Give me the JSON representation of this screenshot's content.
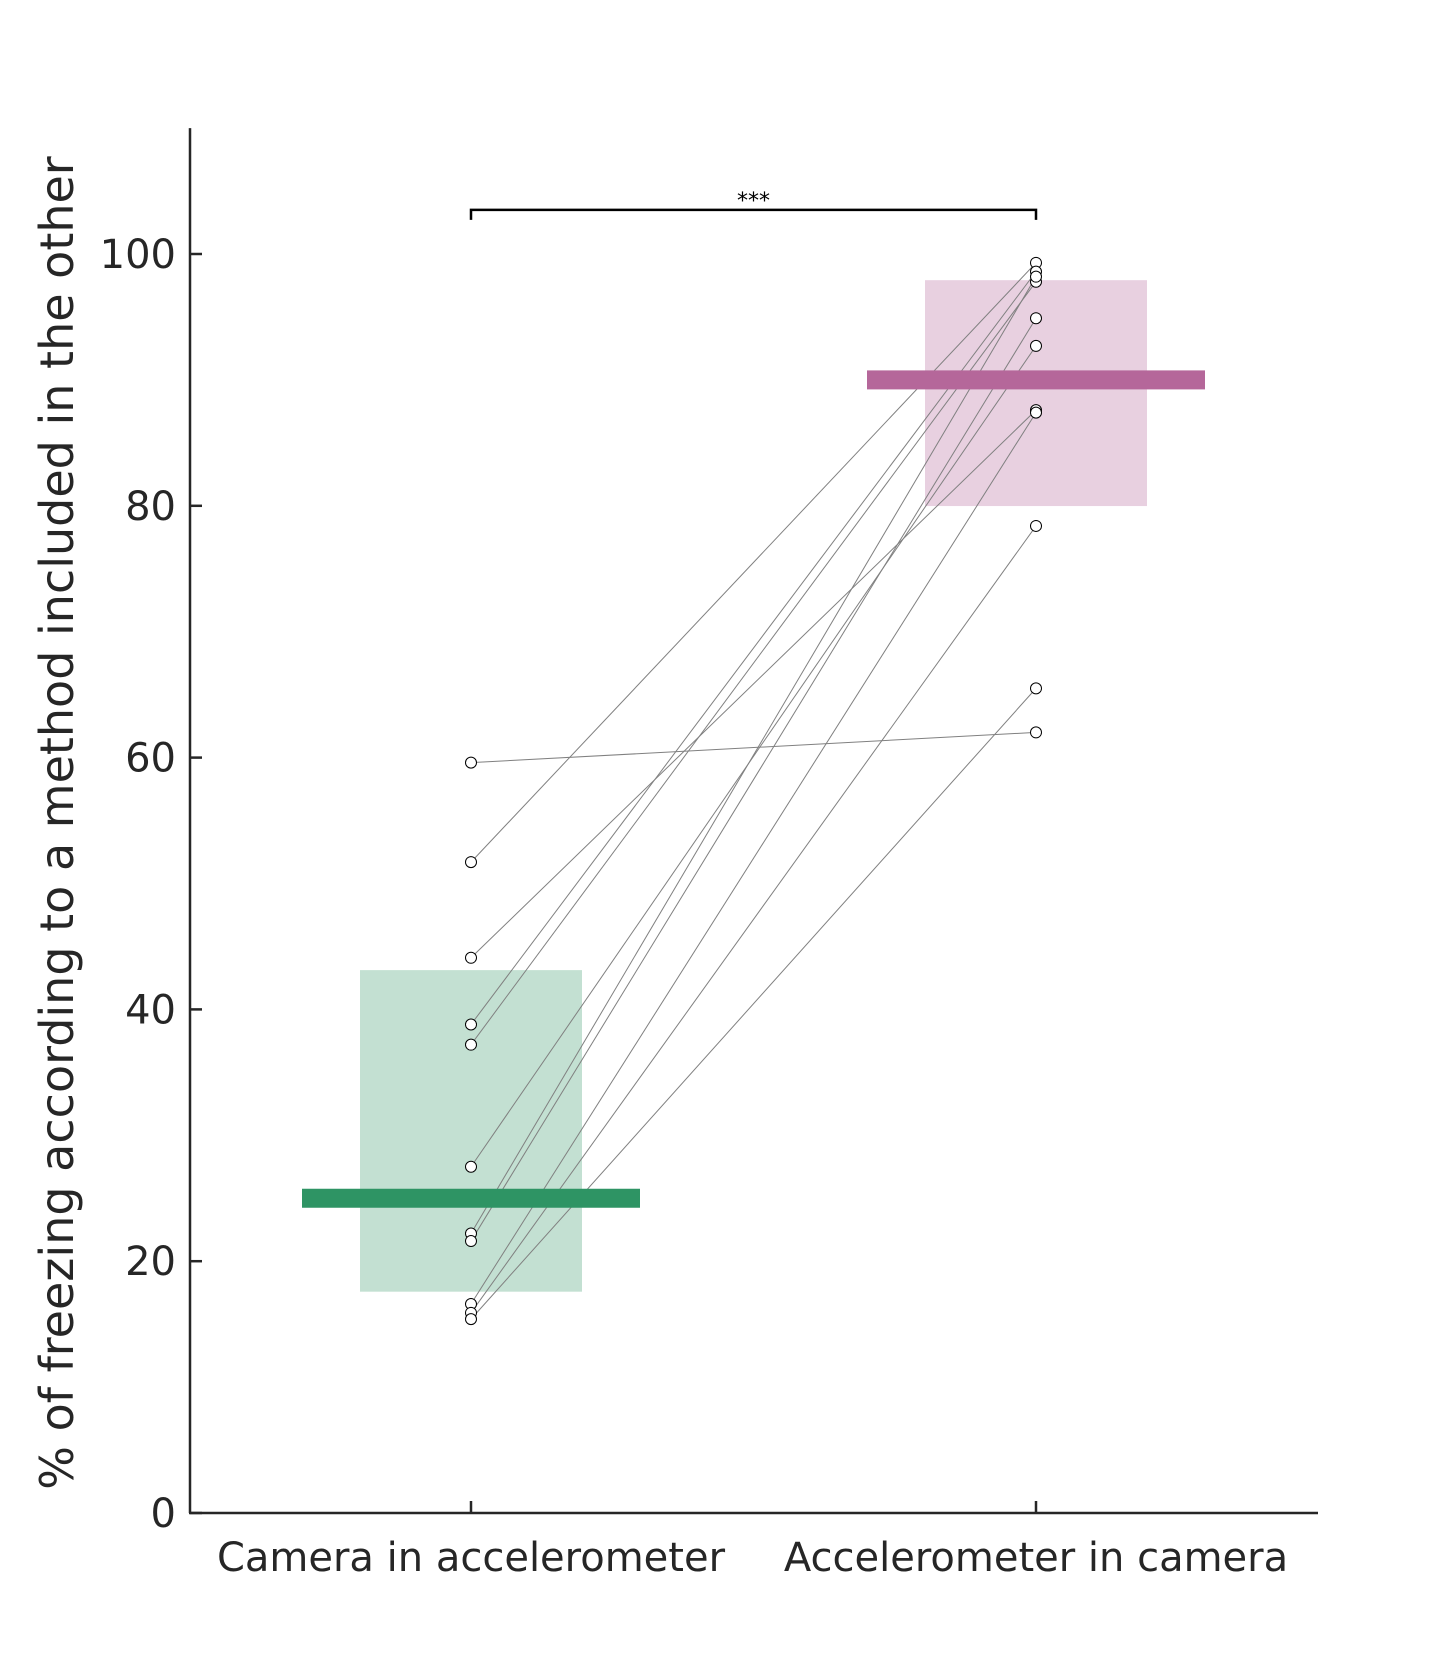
{
  "chart_data": {
    "type": "paired-dot",
    "title": "",
    "xlabel": "",
    "ylabel": "% of freezing according to a method included in the other",
    "ylim": [
      0,
      110
    ],
    "yticks": [
      0,
      20,
      40,
      60,
      80,
      100
    ],
    "grid": false,
    "categories": [
      "Camera in accelerometer",
      "Accelerometer in camera"
    ],
    "colors": {
      "camera": "#2e9464",
      "camera_box": "#c3e0d2",
      "accelerometer": "#b5679a",
      "accelerometer_box": "#e8d0e0",
      "pair_line": "#808080"
    },
    "groups": [
      {
        "mean": 25.0,
        "box_low": 17.5,
        "box_high": 43.2
      },
      {
        "mean": 90.0,
        "box_low": 79.9,
        "box_high": 98.0
      }
    ],
    "pairs": [
      [
        59.6,
        62.0
      ],
      [
        51.7,
        99.3
      ],
      [
        44.1,
        87.6
      ],
      [
        38.8,
        98.6
      ],
      [
        37.2,
        97.8
      ],
      [
        27.5,
        92.7
      ],
      [
        22.2,
        98.2
      ],
      [
        21.6,
        94.9
      ],
      [
        16.6,
        87.4
      ],
      [
        15.9,
        78.4
      ],
      [
        15.4,
        65.5
      ]
    ],
    "significance": {
      "label": "***",
      "y": 103.5,
      "from": 0,
      "to": 1
    }
  }
}
